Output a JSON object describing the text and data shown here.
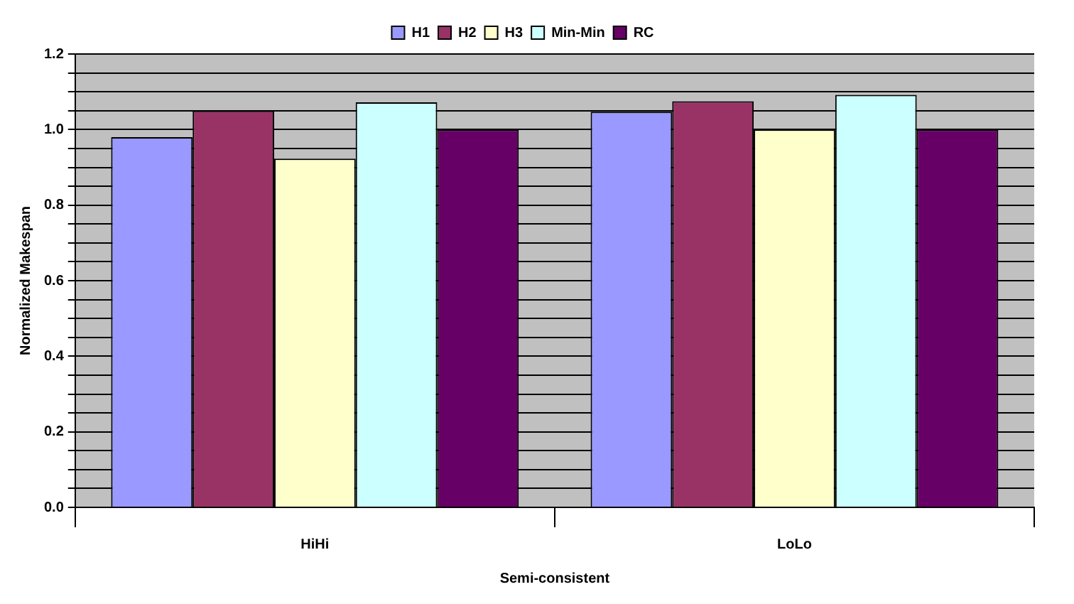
{
  "chart_data": {
    "type": "bar",
    "xlabel": "Semi-consistent",
    "ylabel": "Normalized Makespan",
    "categories": [
      "HiHi",
      "LoLo"
    ],
    "series": [
      {
        "name": "H1",
        "color": "#9999ff",
        "values": [
          0.98,
          1.047
        ]
      },
      {
        "name": "H2",
        "color": "#993366",
        "values": [
          1.05,
          1.075
        ]
      },
      {
        "name": "H3",
        "color": "#ffffcc",
        "values": [
          0.923,
          1.0
        ]
      },
      {
        "name": "Min-Min",
        "color": "#ccffff",
        "values": [
          1.072,
          1.092
        ]
      },
      {
        "name": "RC",
        "color": "#660066",
        "values": [
          1.0,
          1.0
        ]
      }
    ],
    "ylim": [
      0,
      1.2
    ],
    "yticks": [
      {
        "value": 0,
        "label": "0.0"
      },
      {
        "value": 0.05,
        "label": null
      },
      {
        "value": 0.1,
        "label": null
      },
      {
        "value": 0.15,
        "label": null
      },
      {
        "value": 0.2,
        "label": "0.2"
      },
      {
        "value": 0.25,
        "label": null
      },
      {
        "value": 0.3,
        "label": null
      },
      {
        "value": 0.35,
        "label": null
      },
      {
        "value": 0.4,
        "label": "0.4"
      },
      {
        "value": 0.45,
        "label": null
      },
      {
        "value": 0.5,
        "label": null
      },
      {
        "value": 0.55,
        "label": null
      },
      {
        "value": 0.6,
        "label": "0.6"
      },
      {
        "value": 0.65,
        "label": null
      },
      {
        "value": 0.7,
        "label": null
      },
      {
        "value": 0.75,
        "label": null
      },
      {
        "value": 0.8,
        "label": "0.8"
      },
      {
        "value": 0.85,
        "label": null
      },
      {
        "value": 0.9,
        "label": null
      },
      {
        "value": 0.95,
        "label": null
      },
      {
        "value": 1.0,
        "label": "1.0"
      },
      {
        "value": 1.05,
        "label": null
      },
      {
        "value": 1.1,
        "label": null
      },
      {
        "value": 1.15,
        "label": null
      },
      {
        "value": 1.2,
        "label": "1.2"
      }
    ],
    "grid": "y",
    "legend": "top"
  }
}
